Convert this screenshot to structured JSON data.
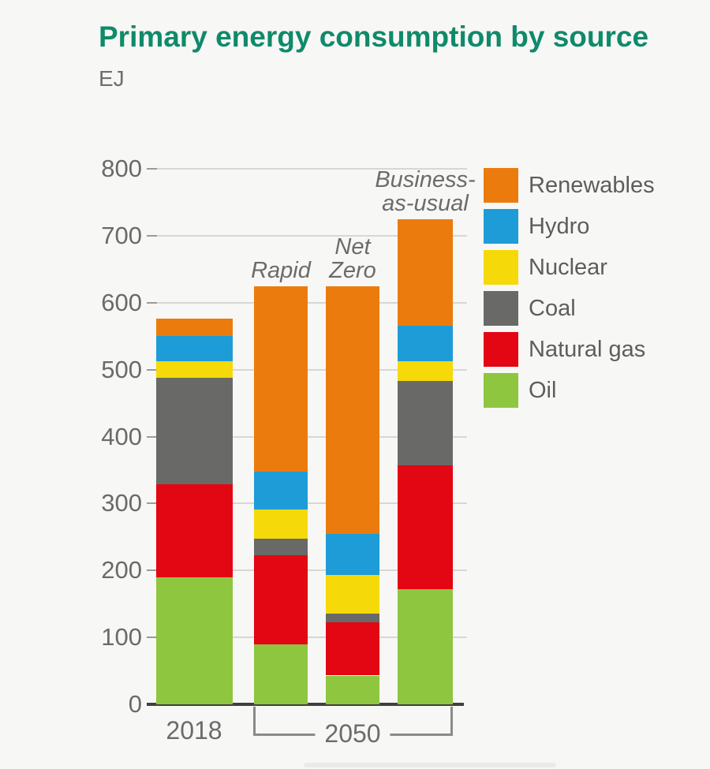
{
  "title": "Primary energy consumption by source",
  "unit_label": "EJ",
  "chart_data": {
    "type": "bar",
    "stacked": true,
    "title": "Primary energy consumption by source",
    "ylabel": "EJ",
    "xlabel": "",
    "ylim": [
      0,
      800
    ],
    "ytick_step": 100,
    "yticks": [
      800,
      700,
      600,
      500,
      400,
      300,
      200,
      100,
      0
    ],
    "grid": "horizontal",
    "legend_position": "right",
    "categories": [
      "2018",
      "Rapid",
      "Net Zero",
      "Business-as-usual"
    ],
    "bar_top_labels": [
      "",
      "Rapid",
      "Net\nZero",
      "Business-\nas-usual"
    ],
    "x_group_labels": {
      "left": "2018",
      "bracket": "2050"
    },
    "stack_order_bottom_to_top": [
      "Oil",
      "Natural gas",
      "Coal",
      "Nuclear",
      "Hydro",
      "Renewables"
    ],
    "series": [
      {
        "name": "Oil",
        "color": "#8ec63f",
        "values": [
          190,
          90,
          43,
          172
        ]
      },
      {
        "name": "Natural gas",
        "color": "#e30613",
        "values": [
          139,
          133,
          80,
          185
        ]
      },
      {
        "name": "Coal",
        "color": "#696a67",
        "values": [
          159,
          24,
          12,
          126
        ]
      },
      {
        "name": "Nuclear",
        "color": "#f6d908",
        "values": [
          25,
          44,
          58,
          29
        ]
      },
      {
        "name": "Hydro",
        "color": "#1e9cd7",
        "values": [
          37,
          57,
          62,
          53
        ]
      },
      {
        "name": "Renewables",
        "color": "#ec7b0e",
        "values": [
          26,
          277,
          370,
          160
        ]
      }
    ],
    "totals": [
      576,
      625,
      625,
      725
    ],
    "legend": [
      {
        "label": "Renewables",
        "color": "#ec7b0e"
      },
      {
        "label": "Hydro",
        "color": "#1e9cd7"
      },
      {
        "label": "Nuclear",
        "color": "#f6d908"
      },
      {
        "label": "Coal",
        "color": "#696a67"
      },
      {
        "label": "Natural gas",
        "color": "#e30613"
      },
      {
        "label": "Oil",
        "color": "#8ec63f"
      }
    ]
  },
  "colors": {
    "title": "#0f8a6a",
    "axis_text": "#6a6a6a",
    "legend_text": "#5d5d5d",
    "gridline": "#d7d7d3",
    "baseline": "#3f3f3f",
    "background": "#f7f7f5"
  }
}
